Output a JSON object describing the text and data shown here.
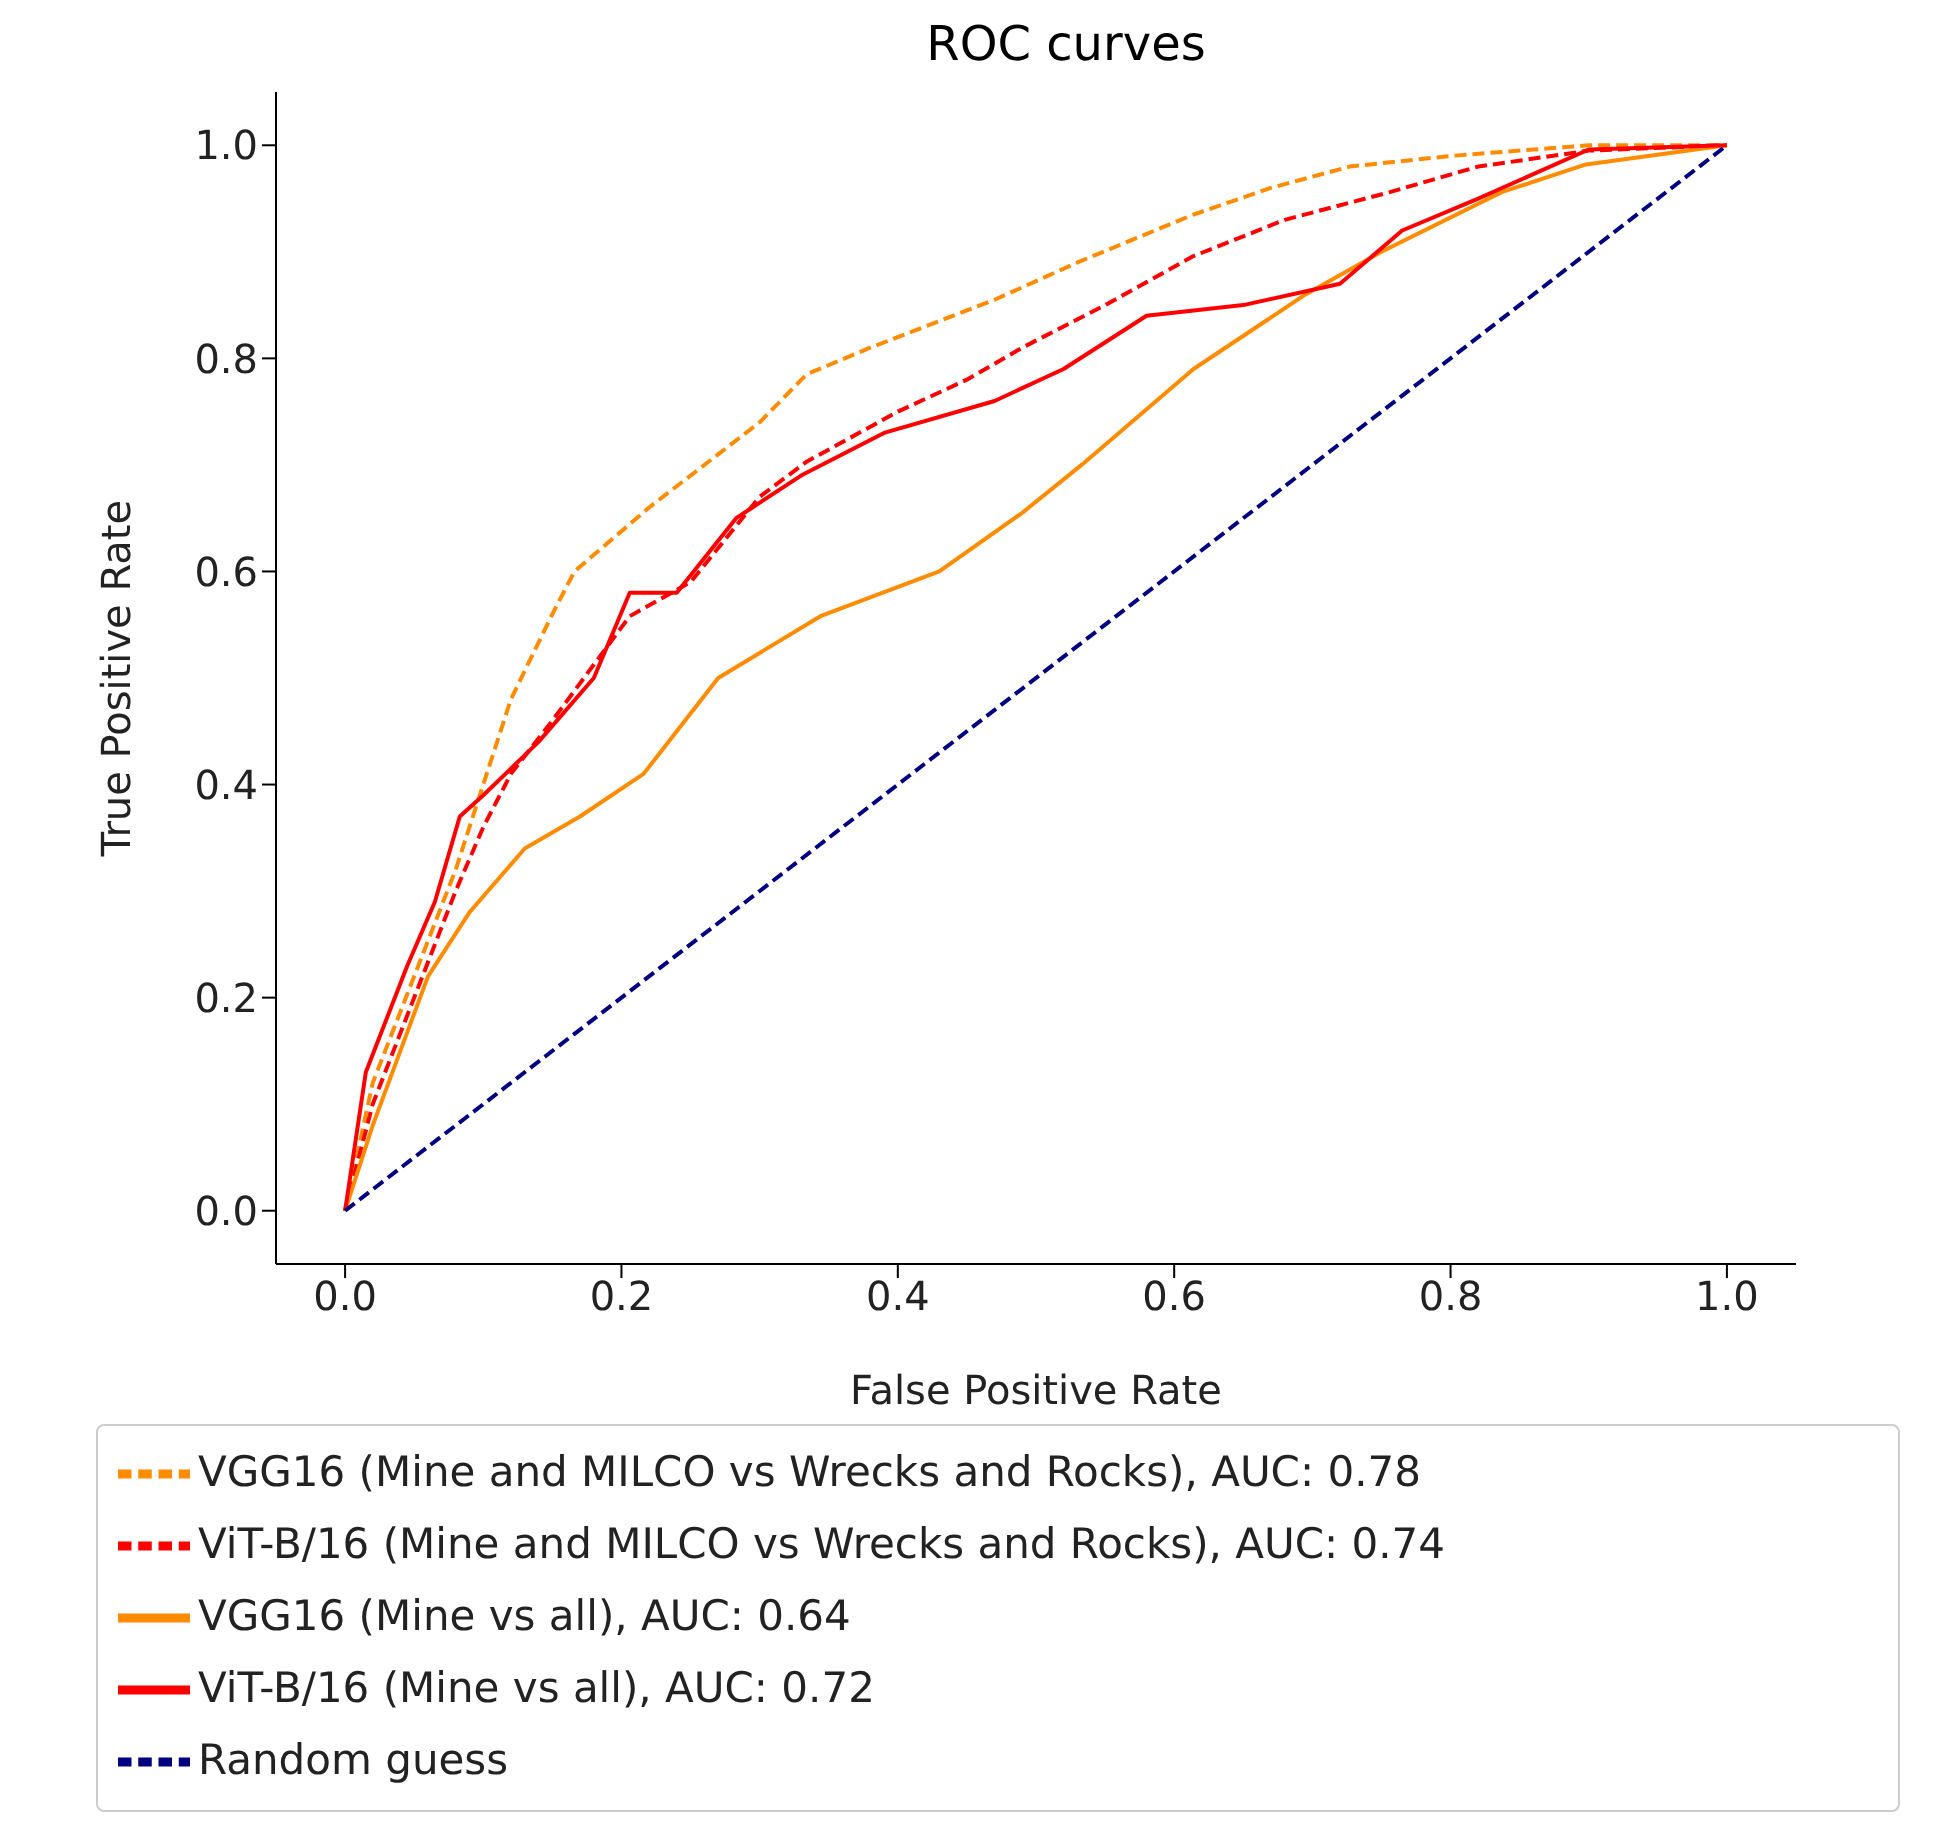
{
  "chart_data": {
    "type": "line",
    "title": "ROC curves",
    "xlabel": "False Positive Rate",
    "ylabel": "True Positive Rate",
    "xlim": [
      -0.05,
      1.05
    ],
    "ylim": [
      -0.05,
      1.05
    ],
    "xticks": [
      {
        "value": 0,
        "label": "0.0"
      },
      {
        "value": 0.2,
        "label": "0.2"
      },
      {
        "value": 0.4,
        "label": "0.4"
      },
      {
        "value": 0.6,
        "label": "0.6"
      },
      {
        "value": 0.8,
        "label": "0.8"
      },
      {
        "value": 1,
        "label": "1.0"
      }
    ],
    "yticks": [
      {
        "value": 0,
        "label": "0.0"
      },
      {
        "value": 0.2,
        "label": "0.2"
      },
      {
        "value": 0.4,
        "label": "0.4"
      },
      {
        "value": 0.6,
        "label": "0.6"
      },
      {
        "value": 0.8,
        "label": "0.8"
      },
      {
        "value": 1,
        "label": "1.0"
      }
    ],
    "grid": false,
    "legend": "bottom",
    "marker": "none",
    "series": [
      {
        "name": "VGG16 (Mine and MILCO vs Wrecks and Rocks), AUC: 0.78",
        "color": "#ff8c00",
        "line_style": "dashed",
        "x": [
          0,
          0.02,
          0.05,
          0.08,
          0.1,
          0.12,
          0.15,
          0.166,
          0.22,
          0.25,
          0.3,
          0.334,
          0.38,
          0.47,
          0.53,
          0.614,
          0.67,
          0.727,
          0.8,
          0.9,
          1
        ],
        "values": [
          0,
          0.12,
          0.22,
          0.32,
          0.4,
          0.48,
          0.56,
          0.6,
          0.66,
          0.69,
          0.74,
          0.785,
          0.81,
          0.855,
          0.89,
          0.935,
          0.96,
          0.98,
          0.99,
          1,
          1
        ]
      },
      {
        "name": "ViT-B/16 (Mine and MILCO vs Wrecks and Rocks), AUC: 0.74",
        "color": "#ff0000",
        "line_style": "dashed",
        "x": [
          0,
          0.02,
          0.05,
          0.08,
          0.1,
          0.12,
          0.15,
          0.206,
          0.25,
          0.3,
          0.334,
          0.4,
          0.45,
          0.49,
          0.55,
          0.614,
          0.68,
          0.756,
          0.82,
          0.9,
          1
        ],
        "values": [
          0,
          0.1,
          0.2,
          0.3,
          0.36,
          0.41,
          0.46,
          0.558,
          0.59,
          0.67,
          0.703,
          0.75,
          0.78,
          0.81,
          0.85,
          0.896,
          0.93,
          0.956,
          0.98,
          0.995,
          1
        ]
      },
      {
        "name": "VGG16 (Mine vs all), AUC: 0.64",
        "color": "#ff8c00",
        "line_style": "solid",
        "x": [
          0,
          0.02,
          0.04,
          0.06,
          0.09,
          0.13,
          0.17,
          0.216,
          0.27,
          0.344,
          0.43,
          0.49,
          0.533,
          0.614,
          0.695,
          0.75,
          0.837,
          0.898,
          1
        ],
        "values": [
          0,
          0.08,
          0.15,
          0.22,
          0.28,
          0.34,
          0.37,
          0.41,
          0.5,
          0.558,
          0.6,
          0.655,
          0.7,
          0.79,
          0.86,
          0.9,
          0.956,
          0.982,
          1
        ]
      },
      {
        "name": "ViT-B/16 (Mine vs all), AUC: 0.72",
        "color": "#ff0000",
        "line_style": "solid",
        "x": [
          0,
          0.015,
          0.045,
          0.065,
          0.083,
          0.1,
          0.14,
          0.18,
          0.206,
          0.24,
          0.283,
          0.33,
          0.39,
          0.47,
          0.52,
          0.58,
          0.65,
          0.72,
          0.765,
          0.82,
          0.9,
          1
        ],
        "values": [
          0,
          0.13,
          0.23,
          0.29,
          0.37,
          0.39,
          0.44,
          0.5,
          0.58,
          0.58,
          0.65,
          0.69,
          0.73,
          0.76,
          0.79,
          0.84,
          0.85,
          0.87,
          0.92,
          0.95,
          0.996,
          1
        ]
      },
      {
        "name": "Random guess",
        "color": "#000080",
        "line_style": "dashed",
        "x": [
          0,
          1
        ],
        "values": [
          0,
          1
        ]
      }
    ]
  }
}
